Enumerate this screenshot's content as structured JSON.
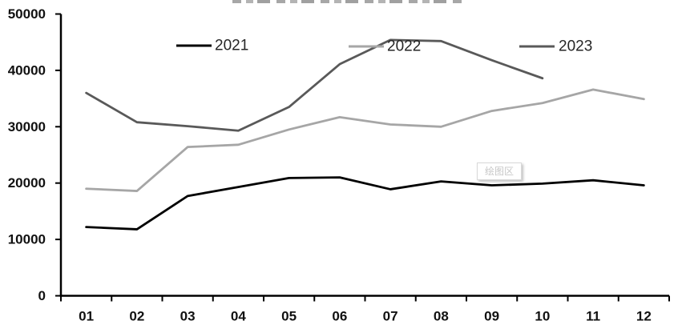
{
  "chart_data": {
    "type": "line",
    "title": "",
    "title_cropped_at_top_edge": true,
    "xlabel": "",
    "ylabel": "",
    "categories": [
      "01",
      "02",
      "03",
      "04",
      "05",
      "06",
      "07",
      "08",
      "09",
      "10",
      "11",
      "12"
    ],
    "series": [
      {
        "name": "2021",
        "color": "#000000",
        "values": [
          12200,
          11800,
          17700,
          19300,
          20900,
          21000,
          18900,
          20300,
          19600,
          19900,
          20500,
          19600
        ]
      },
      {
        "name": "2022",
        "color": "#A6A6A6",
        "values": [
          19000,
          18600,
          26400,
          26800,
          29500,
          31700,
          30400,
          30000,
          32800,
          34200,
          36600,
          34900
        ]
      },
      {
        "name": "2023",
        "color": "#595959",
        "values": [
          36000,
          30800,
          30100,
          29300,
          33500,
          41100,
          45400,
          45200,
          41800,
          38600
        ]
      }
    ],
    "ylim": [
      0,
      50000
    ],
    "y_ticks": [
      0,
      10000,
      20000,
      30000,
      40000,
      50000
    ],
    "grid": false,
    "legend_position": "inside-top",
    "legend_entries": [
      "2021",
      "2022",
      "2023"
    ]
  },
  "overlay_tooltip": {
    "text": "绘图区"
  },
  "colors": {
    "axis": "#000000",
    "tick_label": "#111111",
    "legend_text": "#262626",
    "tooltip_text": "#c7c7c7"
  }
}
